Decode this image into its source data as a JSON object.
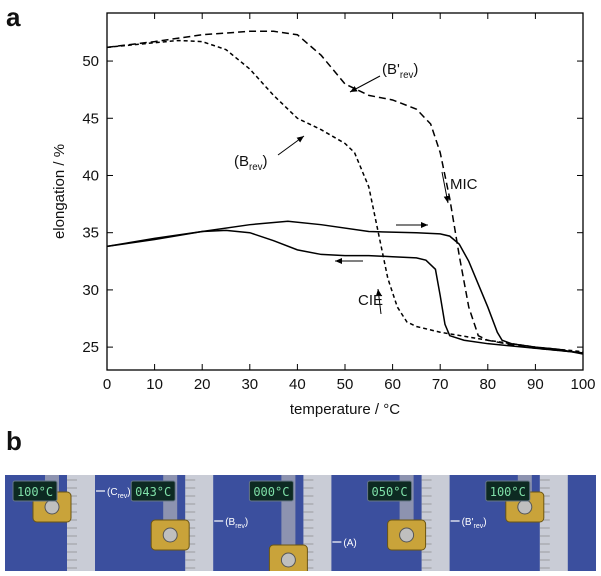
{
  "panel_labels": {
    "a": "a",
    "b": "b"
  },
  "chart_data": {
    "type": "line",
    "x_label": "temperature / °C",
    "y_label": "elongation / %",
    "xlim": [
      0,
      100
    ],
    "xticks": [
      0,
      10,
      20,
      30,
      40,
      50,
      60,
      70,
      80,
      90,
      100
    ],
    "ylim": [
      23,
      54.2
    ],
    "yticks": [
      25,
      30,
      35,
      40,
      45,
      50
    ],
    "series": [
      {
        "color": "#000000",
        "dash": "solid",
        "x": [
          0,
          10,
          20,
          30,
          38,
          45,
          55,
          65,
          70,
          72,
          74,
          76,
          78,
          80,
          82,
          83,
          85,
          90,
          95,
          100
        ],
        "values": [
          33.8,
          34.4,
          35.1,
          35.7,
          36.0,
          35.7,
          35.1,
          35.0,
          34.9,
          34.7,
          34.0,
          32.5,
          30.5,
          28.5,
          26.3,
          25.6,
          25.3,
          25.0,
          24.8,
          24.4
        ]
      },
      {
        "color": "#000000",
        "dash": "solid",
        "x": [
          100,
          90,
          80,
          75,
          72,
          71,
          70,
          69,
          67,
          65,
          60,
          55,
          50,
          45,
          40,
          35,
          30,
          25,
          20,
          10,
          0
        ],
        "values": [
          24.5,
          24.9,
          25.3,
          25.6,
          26.0,
          27.0,
          29.5,
          31.8,
          32.6,
          32.8,
          32.9,
          33.0,
          33.0,
          33.1,
          33.5,
          34.3,
          35.0,
          35.2,
          35.1,
          34.5,
          33.8
        ]
      },
      {
        "color": "#000000",
        "dash": "long",
        "x": [
          0,
          10,
          20,
          30,
          35,
          40,
          45,
          50,
          55,
          60,
          65,
          68,
          70,
          72,
          74,
          76,
          78,
          80,
          85,
          90,
          100
        ],
        "values": [
          51.2,
          51.7,
          52.3,
          52.6,
          52.6,
          52.3,
          50.5,
          48.0,
          47.0,
          46.6,
          45.8,
          44.5,
          42.0,
          38.0,
          33.0,
          28.5,
          26.0,
          25.6,
          25.2,
          24.9,
          24.5
        ]
      },
      {
        "color": "#000000",
        "dash": "short",
        "x": [
          0,
          10,
          15,
          20,
          25,
          30,
          35,
          40,
          45,
          50,
          52,
          55,
          57,
          59,
          61,
          63,
          65,
          70,
          80,
          90,
          100
        ],
        "values": [
          51.2,
          51.6,
          51.8,
          51.7,
          51.0,
          49.3,
          47.0,
          45.0,
          44.0,
          42.8,
          42.0,
          39.0,
          35.0,
          31.0,
          28.5,
          27.2,
          26.8,
          26.3,
          25.6,
          25.0,
          24.6
        ]
      }
    ],
    "annotations": [
      {
        "text": "(B'",
        "sub": "rev",
        "end": ")"
      },
      {
        "text": "(B",
        "sub": "rev",
        "end": ")"
      },
      {
        "text": "MIC"
      },
      {
        "text": "CIE"
      }
    ]
  },
  "photo_strip": {
    "frames": [
      {
        "display": "100°C",
        "label": {
          "text": "(C",
          "sub": "rev",
          "end": ")"
        }
      },
      {
        "display": "043°C",
        "label": {
          "text": "(B",
          "sub": "rev",
          "end": ")"
        }
      },
      {
        "display": "000°C",
        "label": {
          "text": "(A)"
        }
      },
      {
        "display": "050°C",
        "label": {
          "text": "(B'",
          "sub": "rev",
          "end": ")"
        }
      },
      {
        "display": "100°C"
      }
    ]
  }
}
